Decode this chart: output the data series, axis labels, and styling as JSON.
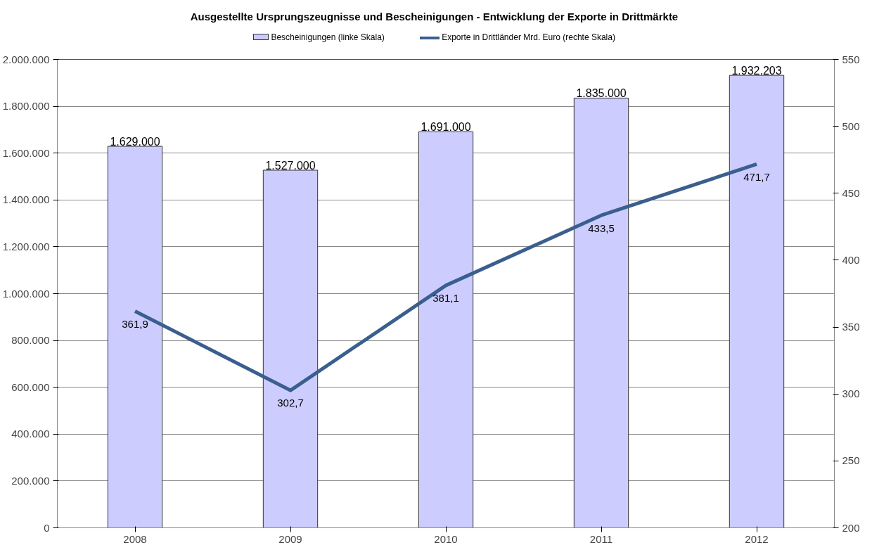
{
  "chart_data": {
    "type": "bar",
    "title": "Ausgestellte Ursprungszeugnisse und Bescheinigungen - Entwicklung der Exporte in Drittmärkte",
    "categories": [
      "2008",
      "2009",
      "2010",
      "2011",
      "2012"
    ],
    "series": [
      {
        "name": "Bescheinigungen (linke Skala)",
        "type": "bar",
        "color": "#ccccff",
        "values": [
          1629000,
          1527000,
          1691000,
          1835000,
          1932203
        ],
        "value_labels": [
          "1.629.000",
          "1.527.000",
          "1.691.000",
          "1.835.000",
          "1.932.203"
        ]
      },
      {
        "name": "Exporte in Drittländer Mrd. Euro (rechte Skala)",
        "type": "line",
        "axis": "y2",
        "color": "#3a5f8f",
        "values": [
          361.9,
          302.7,
          381.1,
          433.5,
          471.7
        ],
        "value_labels": [
          "361,9",
          "302,7",
          "381,1",
          "433,5",
          "471,7"
        ]
      }
    ],
    "ylim": [
      0,
      2000000
    ],
    "yticks": [
      {
        "value": 0,
        "label": "0"
      },
      {
        "value": 200000,
        "label": "200.000"
      },
      {
        "value": 400000,
        "label": "400.000"
      },
      {
        "value": 600000,
        "label": "600.000"
      },
      {
        "value": 800000,
        "label": "800.000"
      },
      {
        "value": 1000000,
        "label": "1.000.000"
      },
      {
        "value": 1200000,
        "label": "1.200.000"
      },
      {
        "value": 1400000,
        "label": "1.400.000"
      },
      {
        "value": 1600000,
        "label": "1.600.000"
      },
      {
        "value": 1800000,
        "label": "1.800.000"
      },
      {
        "value": 2000000,
        "label": "2.000.000"
      }
    ],
    "y2lim": [
      200,
      550
    ],
    "y2ticks": [
      200,
      250,
      300,
      350,
      400,
      450,
      500,
      550
    ],
    "grid": "y",
    "legend": "top",
    "line_style": "solid",
    "marker": "none"
  }
}
